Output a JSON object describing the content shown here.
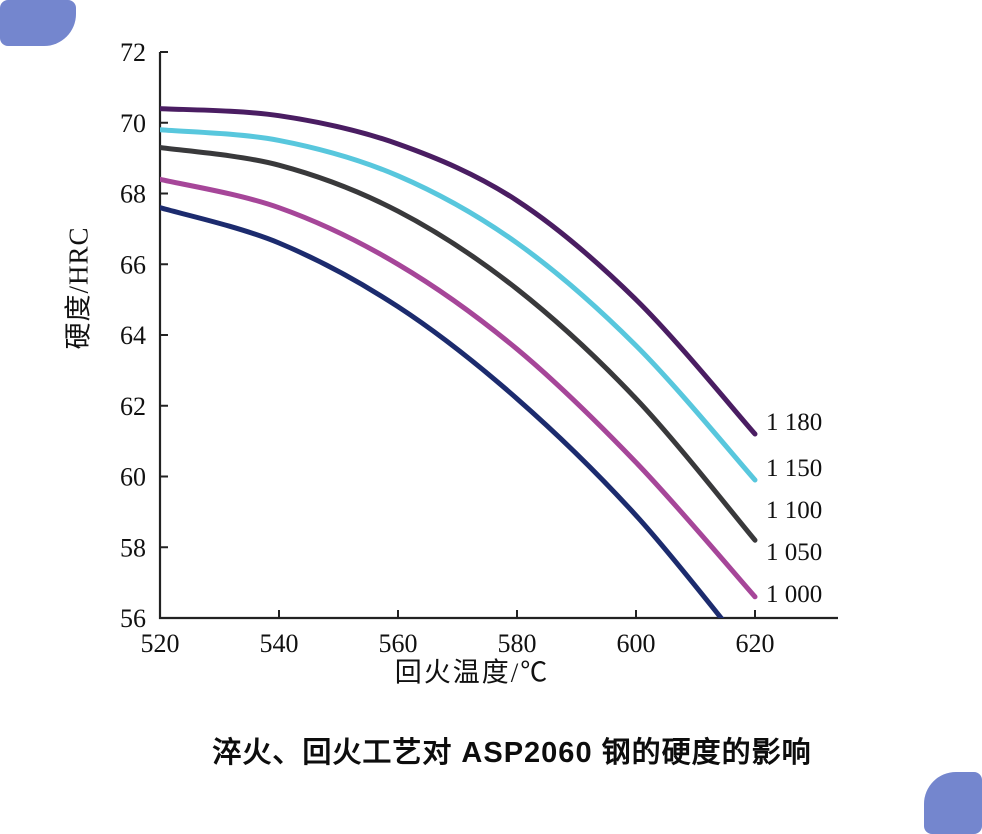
{
  "decor": {
    "corner_color": "#7486ce",
    "background_color": "#ffffff"
  },
  "chart_data": {
    "type": "line",
    "title": "淬火、回火工艺对 ASP2060 钢的硬度的影响",
    "xlabel": "回火温度/℃",
    "ylabel": "硬度/HRC",
    "xlim": [
      520,
      620
    ],
    "ylim": [
      56,
      72
    ],
    "x_ticks": [
      520,
      540,
      560,
      580,
      600,
      620
    ],
    "y_ticks": [
      56,
      58,
      60,
      62,
      64,
      66,
      68,
      70,
      72
    ],
    "grid": false,
    "legend_position": "right-end-labels",
    "axis_color": "#222222",
    "text_color": "#111111",
    "series": [
      {
        "name": "1 180",
        "color": "#4a1d62",
        "x": [
          520,
          540,
          560,
          580,
          600,
          620
        ],
        "y": [
          70.4,
          70.2,
          69.4,
          67.8,
          65.0,
          61.2
        ]
      },
      {
        "name": "1 150",
        "color": "#58c7dd",
        "x": [
          520,
          540,
          560,
          580,
          600,
          620
        ],
        "y": [
          69.8,
          69.5,
          68.5,
          66.6,
          63.7,
          59.9
        ]
      },
      {
        "name": "1 100",
        "color": "#39393b",
        "x": [
          520,
          540,
          560,
          580,
          600,
          620
        ],
        "y": [
          69.3,
          68.8,
          67.5,
          65.3,
          62.2,
          58.2
        ]
      },
      {
        "name": "1 050",
        "color": "#a64699",
        "x": [
          520,
          540,
          560,
          580,
          600,
          620
        ],
        "y": [
          68.4,
          67.6,
          66.0,
          63.6,
          60.4,
          56.6
        ]
      },
      {
        "name": "1 000",
        "color": "#1c2b6e",
        "x": [
          520,
          540,
          560,
          580,
          600,
          620
        ],
        "y": [
          67.6,
          66.6,
          64.8,
          62.2,
          58.9,
          54.8
        ]
      }
    ]
  }
}
